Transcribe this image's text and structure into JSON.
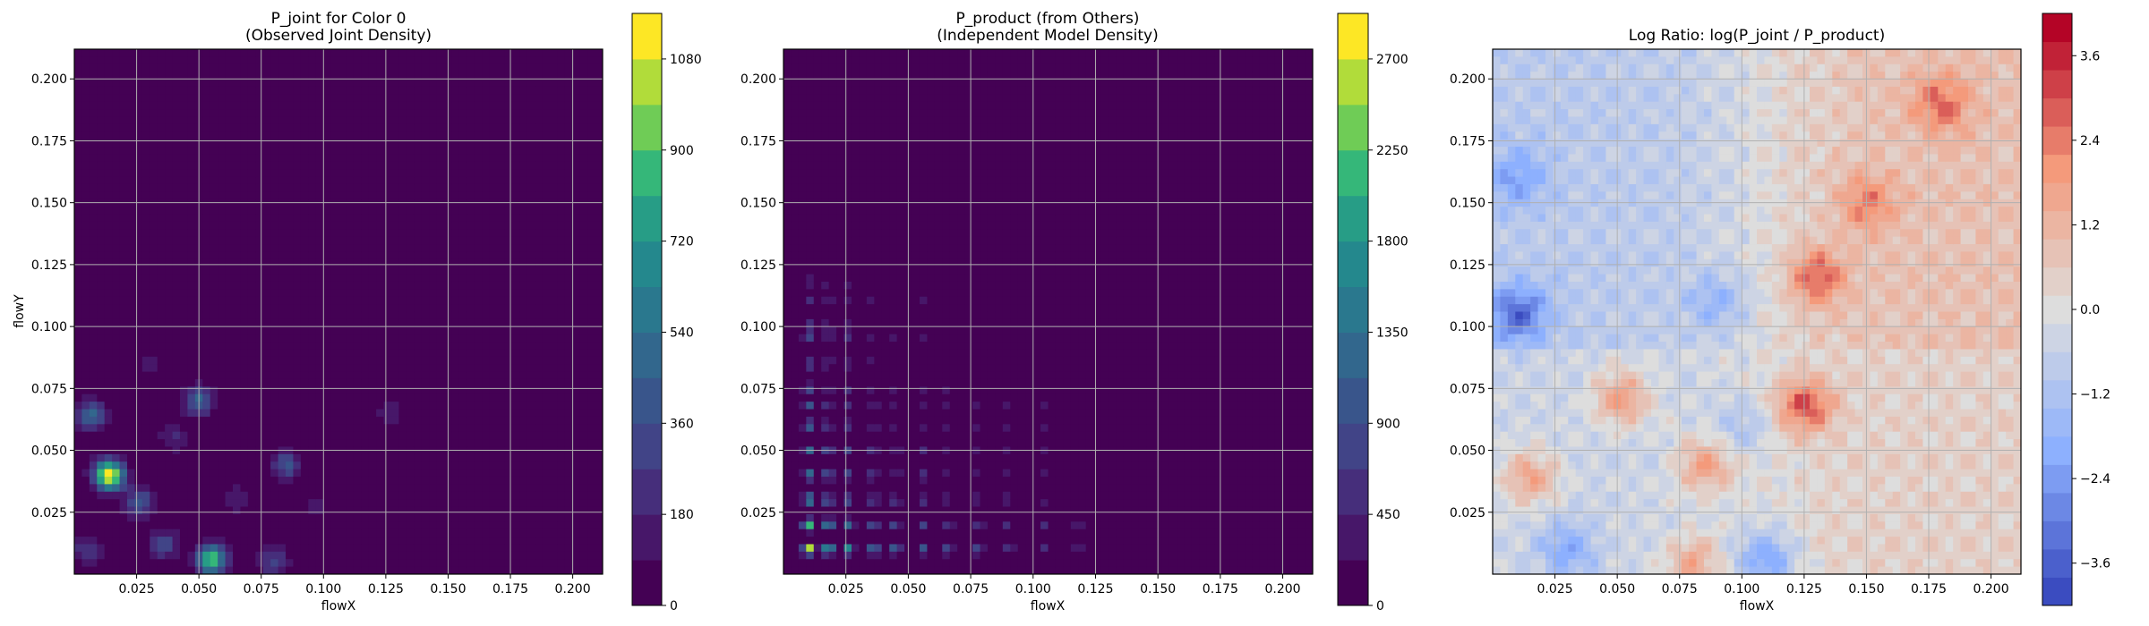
{
  "chart_data": [
    {
      "type": "heatmap",
      "title_lines": [
        "P_joint for Color 0",
        "(Observed Joint Density)"
      ],
      "xlabel": "flowX",
      "ylabel": "flowY",
      "xlim": [
        0.0,
        0.212
      ],
      "ylim": [
        0.0,
        0.212
      ],
      "x_ticks": [
        "0.025",
        "0.050",
        "0.075",
        "0.100",
        "0.125",
        "0.150",
        "0.175",
        "0.200"
      ],
      "y_ticks": [
        "0.025",
        "0.050",
        "0.075",
        "0.100",
        "0.125",
        "0.150",
        "0.175",
        "0.200"
      ],
      "grid": true,
      "colormap": "viridis",
      "colorbar": {
        "min": 0,
        "max": 1170,
        "ticks": [
          "0",
          "180",
          "360",
          "540",
          "720",
          "900",
          "1080"
        ],
        "levels": 13
      },
      "hotspots": [
        {
          "x": 0.014,
          "y": 0.04,
          "value": 1170
        },
        {
          "x": 0.055,
          "y": 0.006,
          "value": 900
        },
        {
          "x": 0.007,
          "y": 0.064,
          "value": 500
        },
        {
          "x": 0.05,
          "y": 0.07,
          "value": 480
        },
        {
          "x": 0.085,
          "y": 0.044,
          "value": 380
        },
        {
          "x": 0.026,
          "y": 0.029,
          "value": 420
        },
        {
          "x": 0.036,
          "y": 0.012,
          "value": 330
        },
        {
          "x": 0.08,
          "y": 0.005,
          "value": 320
        },
        {
          "x": 0.005,
          "y": 0.01,
          "value": 260
        },
        {
          "x": 0.127,
          "y": 0.066,
          "value": 170
        },
        {
          "x": 0.04,
          "y": 0.055,
          "value": 200
        },
        {
          "x": 0.065,
          "y": 0.03,
          "value": 180
        },
        {
          "x": 0.03,
          "y": 0.085,
          "value": 140
        },
        {
          "x": 0.097,
          "y": 0.027,
          "value": 120
        }
      ]
    },
    {
      "type": "heatmap",
      "title_lines": [
        "P_product (from Others)",
        "(Independent Model Density)"
      ],
      "xlabel": "flowX",
      "ylabel": "",
      "xlim": [
        0.0,
        0.212
      ],
      "ylim": [
        0.0,
        0.212
      ],
      "x_ticks": [
        "0.025",
        "0.050",
        "0.075",
        "0.100",
        "0.125",
        "0.150",
        "0.175",
        "0.200"
      ],
      "y_ticks": [
        "0.025",
        "0.050",
        "0.075",
        "0.100",
        "0.125",
        "0.150",
        "0.175",
        "0.200"
      ],
      "grid": true,
      "colormap": "viridis",
      "colorbar": {
        "min": 0,
        "max": 2925,
        "ticks": [
          "0",
          "450",
          "900",
          "1350",
          "1800",
          "2250",
          "2700"
        ],
        "levels": 13
      },
      "marginal_x": [
        0.01,
        0.018,
        0.026,
        0.036,
        0.045,
        0.056,
        0.066,
        0.078,
        0.09,
        0.105,
        0.118
      ],
      "marginal_y": [
        0.01,
        0.02,
        0.03,
        0.04,
        0.05,
        0.06,
        0.068,
        0.075,
        0.085,
        0.095,
        0.1,
        0.11,
        0.118
      ],
      "peak": {
        "x": 0.01,
        "y": 0.01,
        "value": 2925
      }
    },
    {
      "type": "heatmap",
      "title_lines": [
        "Log Ratio: log(P_joint / P_product)"
      ],
      "xlabel": "flowX",
      "ylabel": "",
      "xlim": [
        0.0,
        0.212
      ],
      "ylim": [
        0.0,
        0.212
      ],
      "x_ticks": [
        "0.025",
        "0.050",
        "0.075",
        "0.100",
        "0.125",
        "0.150",
        "0.175",
        "0.200"
      ],
      "y_ticks": [
        "0.025",
        "0.050",
        "0.075",
        "0.100",
        "0.125",
        "0.150",
        "0.175",
        "0.200"
      ],
      "grid": true,
      "colormap": "coolwarm",
      "colorbar": {
        "min": -4.2,
        "max": 4.2,
        "ticks": [
          "−3.6",
          "−2.4",
          "−1.2",
          "0.0",
          "1.2",
          "2.4",
          "3.6"
        ],
        "levels": 21
      },
      "features": [
        {
          "x": 0.125,
          "y": 0.068,
          "value": 2.8
        },
        {
          "x": 0.052,
          "y": 0.071,
          "value": 2.2
        },
        {
          "x": 0.085,
          "y": 0.044,
          "value": 2.0
        },
        {
          "x": 0.015,
          "y": 0.039,
          "value": 2.0
        },
        {
          "x": 0.13,
          "y": 0.12,
          "value": 2.4
        },
        {
          "x": 0.15,
          "y": 0.15,
          "value": 1.6
        },
        {
          "x": 0.18,
          "y": 0.19,
          "value": 1.8
        },
        {
          "x": 0.08,
          "y": 0.004,
          "value": 1.8
        },
        {
          "x": 0.01,
          "y": 0.105,
          "value": -2.6
        },
        {
          "x": 0.01,
          "y": 0.16,
          "value": -1.4
        },
        {
          "x": 0.11,
          "y": 0.006,
          "value": -2.2
        },
        {
          "x": 0.03,
          "y": 0.01,
          "value": -1.6
        },
        {
          "x": 0.09,
          "y": 0.11,
          "value": -1.2
        },
        {
          "x": 0.1,
          "y": 0.06,
          "value": -1.0
        }
      ]
    }
  ]
}
